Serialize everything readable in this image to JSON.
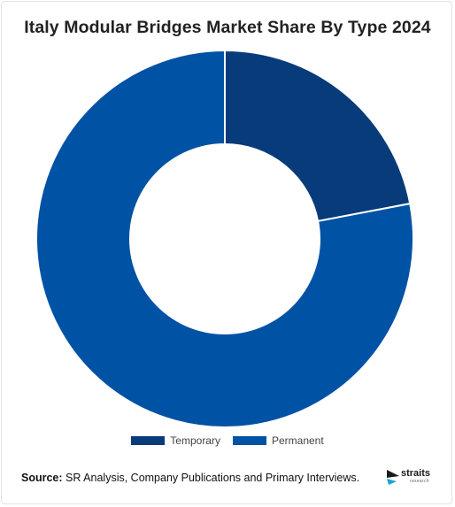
{
  "title": "Italy Modular Bridges Market Share By Type 2024",
  "chart_data": {
    "type": "pie",
    "variant": "donut",
    "title": "Italy Modular Bridges Market Share By Type 2024",
    "categories": [
      "Temporary",
      "Permanent"
    ],
    "values": [
      22,
      78
    ],
    "colors": [
      "#073b7a",
      "#0052a5"
    ],
    "legend_position": "bottom"
  },
  "legend": {
    "items": [
      {
        "label": "Temporary",
        "color": "#073b7a"
      },
      {
        "label": "Permanent",
        "color": "#0052a5"
      }
    ]
  },
  "source": {
    "label": "Source:",
    "text": "SR Analysis, Company Publications and Primary Interviews."
  },
  "logo": {
    "name": "straits",
    "tagline": "research",
    "icon": "straits-logo-icon"
  }
}
